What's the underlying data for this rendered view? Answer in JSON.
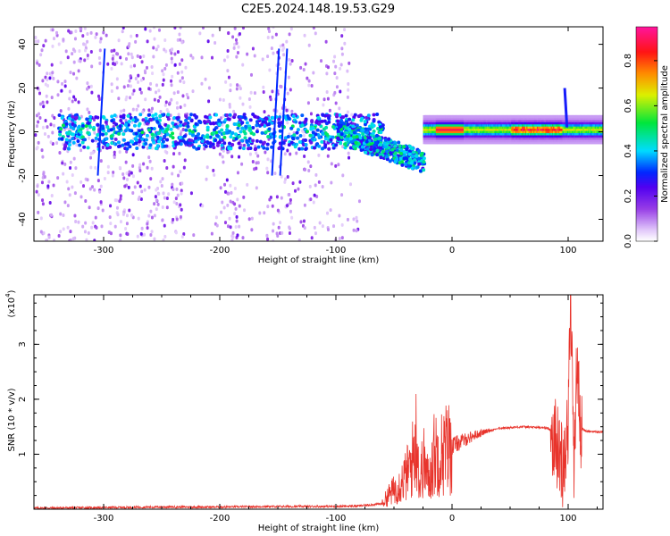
{
  "title": "C2E5.2024.148.19.53.G29",
  "colors": {
    "snr_line": "#e8342c",
    "axis": "#000000"
  },
  "chart_data": [
    {
      "type": "heatmap",
      "name_hint": "spectrogram",
      "xlabel": "Height of straight line (km)",
      "ylabel": "Frequency (Hz)",
      "xlim": [
        -360,
        130
      ],
      "ylim": [
        -50,
        48
      ],
      "xticks": [
        -300,
        -200,
        -100,
        0,
        100
      ],
      "yticks": [
        -40,
        -20,
        0,
        20,
        40
      ],
      "colorbar": {
        "label": "Normalized spectral amplitude",
        "range": [
          0,
          0.95
        ],
        "ticks": [
          0.0,
          0.2,
          0.4,
          0.6,
          0.8
        ],
        "colormap": "rainbow (white-violet-blue-cyan-green-yellow-red-magenta)"
      },
      "features": {
        "main_band_center_hz": 0,
        "strong_band_x_range": [
          -10,
          130
        ],
        "diffuse_noise_x_range": [
          -360,
          -80
        ],
        "vertical_streaks_x": [
          -302,
          -152,
          -145
        ],
        "spike_at_x": 97
      }
    },
    {
      "type": "line",
      "xlabel": "Height of straight line (km)",
      "ylabel": "SNR (10 * v/v)",
      "y_scale_label": "(x10",
      "y_scale_exponent": "4",
      "xlim": [
        -360,
        130
      ],
      "ylim": [
        0,
        3.9
      ],
      "xticks": [
        -300,
        -200,
        -100,
        0,
        100
      ],
      "yticks": [
        1,
        2,
        3
      ],
      "series": [
        {
          "points": [
            [
              -360,
              0.02
            ],
            [
              -300,
              0.03
            ],
            [
              -250,
              0.04
            ],
            [
              -200,
              0.04
            ],
            [
              -150,
              0.05
            ],
            [
              -100,
              0.05
            ],
            [
              -80,
              0.06
            ],
            [
              -60,
              0.1
            ],
            [
              -55,
              0.25
            ],
            [
              -50,
              0.35
            ],
            [
              -45,
              0.45
            ],
            [
              -40,
              0.6
            ],
            [
              -35,
              0.8
            ],
            [
              -30,
              1.4
            ],
            [
              -28,
              0.4
            ],
            [
              -25,
              0.9
            ],
            [
              -20,
              0.5
            ],
            [
              -15,
              1.05
            ],
            [
              -10,
              1.0
            ],
            [
              -5,
              1.1
            ],
            [
              0,
              1.15
            ],
            [
              10,
              1.25
            ],
            [
              20,
              1.35
            ],
            [
              30,
              1.42
            ],
            [
              40,
              1.47
            ],
            [
              60,
              1.5
            ],
            [
              80,
              1.48
            ],
            [
              85,
              1.45
            ],
            [
              90,
              1.2
            ],
            [
              95,
              0.8
            ],
            [
              100,
              1.5
            ],
            [
              102,
              3.9
            ],
            [
              105,
              1.0
            ],
            [
              108,
              2.8
            ],
            [
              110,
              1.5
            ],
            [
              115,
              1.42
            ],
            [
              130,
              1.4
            ]
          ]
        }
      ]
    }
  ]
}
